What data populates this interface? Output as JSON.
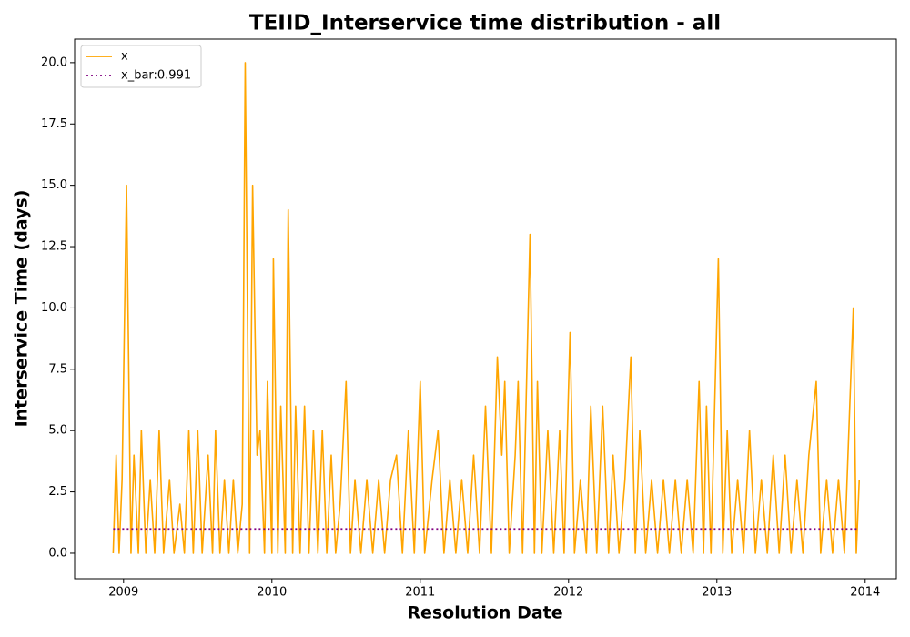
{
  "chart_data": {
    "type": "line",
    "title": "TEIID_Interservice time distribution - all",
    "x_label": "Resolution Date",
    "y_label": "Interservice Time (days)",
    "xlim": [
      2008.67,
      2014.21
    ],
    "ylim": [
      -1.04,
      20.96
    ],
    "xticks": [
      2009,
      2010,
      2011,
      2012,
      2013,
      2014
    ],
    "yticks": [
      {
        "value": 0,
        "label": "0.0"
      },
      2.5,
      {
        "value": 5,
        "label": "5.0"
      },
      7.5,
      {
        "value": 10,
        "label": "10.0"
      },
      12.5,
      {
        "value": 15,
        "label": "15.0"
      },
      17.5,
      {
        "value": 20,
        "label": "20.0"
      }
    ],
    "grid": false,
    "legend": "upper left",
    "series": [
      {
        "name": "x",
        "color": "#ffa500",
        "style": "solid",
        "x": [
          2008.93,
          2008.95,
          2008.97,
          2008.99,
          2009.02,
          2009.05,
          2009.07,
          2009.1,
          2009.12,
          2009.15,
          2009.18,
          2009.21,
          2009.24,
          2009.27,
          2009.31,
          2009.34,
          2009.38,
          2009.41,
          2009.44,
          2009.47,
          2009.5,
          2009.53,
          2009.57,
          2009.6,
          2009.62,
          2009.65,
          2009.68,
          2009.71,
          2009.74,
          2009.77,
          2009.8,
          2009.82,
          2009.85,
          2009.87,
          2009.9,
          2009.92,
          2009.95,
          2009.97,
          2010.0,
          2010.01,
          2010.04,
          2010.06,
          2010.09,
          2010.11,
          2010.14,
          2010.16,
          2010.19,
          2010.22,
          2010.25,
          2010.28,
          2010.31,
          2010.34,
          2010.37,
          2010.4,
          2010.43,
          2010.46,
          2010.5,
          2010.53,
          2010.56,
          2010.6,
          2010.64,
          2010.68,
          2010.72,
          2010.76,
          2010.8,
          2010.84,
          2010.88,
          2010.92,
          2010.96,
          2011.0,
          2011.03,
          2011.08,
          2011.12,
          2011.16,
          2011.2,
          2011.24,
          2011.28,
          2011.32,
          2011.36,
          2011.4,
          2011.44,
          2011.48,
          2011.52,
          2011.55,
          2011.57,
          2011.6,
          2011.64,
          2011.66,
          2011.69,
          2011.74,
          2011.77,
          2011.79,
          2011.82,
          2011.86,
          2011.9,
          2011.94,
          2011.97,
          2012.01,
          2012.04,
          2012.08,
          2012.12,
          2012.15,
          2012.19,
          2012.23,
          2012.27,
          2012.3,
          2012.34,
          2012.38,
          2012.42,
          2012.45,
          2012.48,
          2012.52,
          2012.56,
          2012.6,
          2012.64,
          2012.68,
          2012.72,
          2012.76,
          2012.8,
          2012.84,
          2012.88,
          2012.91,
          2012.93,
          2012.96,
          2013.01,
          2013.04,
          2013.07,
          2013.1,
          2013.14,
          2013.18,
          2013.22,
          2013.26,
          2013.3,
          2013.34,
          2013.38,
          2013.42,
          2013.46,
          2013.5,
          2013.54,
          2013.58,
          2013.62,
          2013.67,
          2013.7,
          2013.74,
          2013.78,
          2013.82,
          2013.86,
          2013.92,
          2013.94,
          2013.96
        ],
        "values": [
          0,
          4,
          0,
          3,
          15,
          0,
          4,
          0,
          5,
          0,
          3,
          0,
          5,
          0,
          3,
          0,
          2,
          0,
          5,
          0,
          5,
          0,
          4,
          0,
          5,
          0,
          3,
          0,
          3,
          0,
          2,
          20,
          0,
          15,
          4,
          5,
          0,
          7,
          0,
          12,
          0,
          6,
          0,
          14,
          0,
          6,
          0,
          6,
          0,
          5,
          0,
          5,
          0,
          4,
          0,
          2,
          7,
          0,
          3,
          0,
          3,
          0,
          3,
          0,
          3,
          4,
          0,
          5,
          0,
          7,
          0,
          3,
          5,
          0,
          3,
          0,
          3,
          0,
          4,
          0,
          6,
          0,
          8,
          4,
          7,
          0,
          4,
          7,
          0,
          13,
          0,
          7,
          0,
          5,
          0,
          5,
          0,
          9,
          0,
          3,
          0,
          6,
          0,
          6,
          0,
          4,
          0,
          3,
          8,
          0,
          5,
          0,
          3,
          0,
          3,
          0,
          3,
          0,
          3,
          0,
          7,
          0,
          6,
          0,
          12,
          0,
          5,
          0,
          3,
          0,
          5,
          0,
          3,
          0,
          4,
          0,
          4,
          0,
          3,
          0,
          4,
          7,
          0,
          3,
          0,
          3,
          0,
          10,
          0,
          3
        ]
      },
      {
        "name": "x_bar:0.991",
        "color": "#800080",
        "style": "dotted",
        "x": [
          2008.93,
          2013.96
        ],
        "values": [
          0.991,
          0.991
        ]
      }
    ]
  }
}
